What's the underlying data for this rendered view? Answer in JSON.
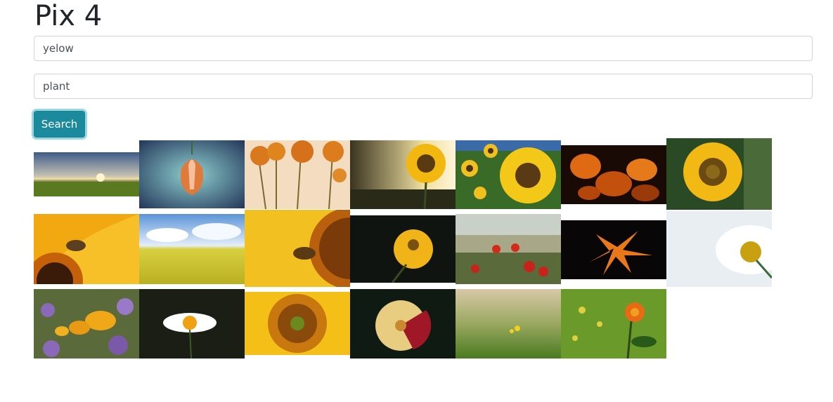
{
  "page": {
    "title": "Pix 4"
  },
  "search": {
    "field1_value": "yelow",
    "field2_value": "plant",
    "button_label": "Search"
  },
  "gallery": {
    "images": [
      {
        "name": "sunset-field-image"
      },
      {
        "name": "bell-flower-image"
      },
      {
        "name": "orange-gerbera-image"
      },
      {
        "name": "sunflower-sunset-image"
      },
      {
        "name": "sunflower-field-image"
      },
      {
        "name": "orange-flowers-dark-image"
      },
      {
        "name": "sunflower-closeup-image"
      },
      {
        "name": "bee-orange-flower-image"
      },
      {
        "name": "rapeseed-field-image"
      },
      {
        "name": "bee-sunflower-image"
      },
      {
        "name": "yellow-daisy-dark-image"
      },
      {
        "name": "poppies-wheat-image"
      },
      {
        "name": "orange-lily-dark-image"
      },
      {
        "name": "white-daisy-image"
      },
      {
        "name": "purple-yellow-flowers-image"
      },
      {
        "name": "daisy-dark-image"
      },
      {
        "name": "sunflower-center-image"
      },
      {
        "name": "dahlia-image"
      },
      {
        "name": "meadow-blur-image"
      },
      {
        "name": "orange-rose-image"
      }
    ]
  }
}
